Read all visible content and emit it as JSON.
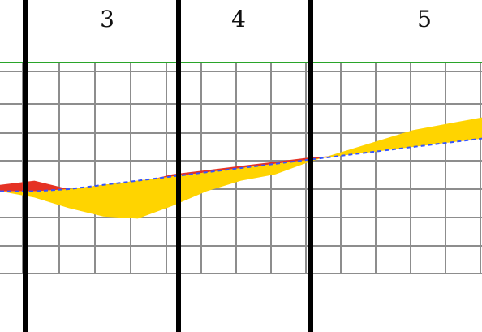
{
  "chart_data": {
    "type": "area",
    "sections": [
      "3",
      "4",
      "5"
    ],
    "x": [
      0,
      1,
      2,
      3,
      4,
      5,
      6,
      7,
      8,
      9,
      10,
      11,
      12,
      13,
      14
    ],
    "series": [
      {
        "values": [
          0.42,
          0.44,
          0.4,
          0.36,
          0.43,
          0.47,
          0.49,
          0.51,
          0.53,
          0.55,
          0.56,
          0.58,
          0.6,
          0.62,
          0.66
        ]
      },
      {
        "values": [
          0.39,
          0.36,
          0.31,
          0.27,
          0.26,
          0.32,
          0.39,
          0.44,
          0.47,
          0.53,
          0.58,
          0.63,
          0.68,
          0.71,
          0.74
        ]
      },
      {
        "values": [
          0.39,
          0.39,
          0.4,
          0.42,
          0.44,
          0.46,
          0.48,
          0.5,
          0.52,
          0.54,
          0.56,
          0.58,
          0.6,
          0.62,
          0.64
        ]
      }
    ],
    "ylim": [
      0,
      1
    ],
    "grid": true,
    "colors": {
      "upper": "#e53224",
      "lower": "#ffd400",
      "dashed": "#3555ff",
      "top_line": "#2aa52a",
      "grid": "#8d8d8d",
      "divider": "#000000"
    }
  }
}
